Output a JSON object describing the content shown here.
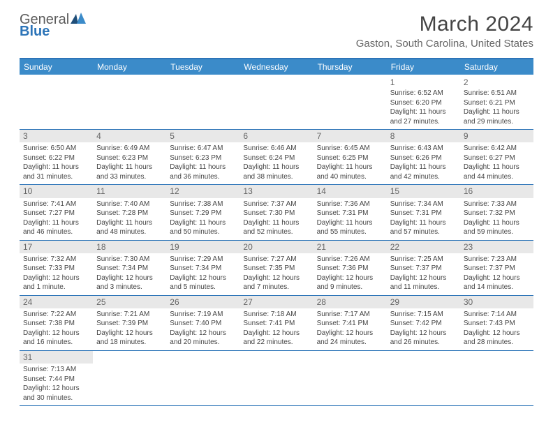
{
  "brand": {
    "part1": "General",
    "part2": "Blue"
  },
  "title": "March 2024",
  "location": "Gaston, South Carolina, United States",
  "weekdays": [
    "Sunday",
    "Monday",
    "Tuesday",
    "Wednesday",
    "Thursday",
    "Friday",
    "Saturday"
  ],
  "colors": {
    "header_bar": "#3b8bc9",
    "rule": "#2c74b8",
    "band": "#e8e8e8",
    "text": "#444444",
    "muted": "#666666"
  },
  "first_weekday_index": 5,
  "days": [
    {
      "n": 1,
      "sunrise": "6:52 AM",
      "sunset": "6:20 PM",
      "daylight": "11 hours and 27 minutes."
    },
    {
      "n": 2,
      "sunrise": "6:51 AM",
      "sunset": "6:21 PM",
      "daylight": "11 hours and 29 minutes."
    },
    {
      "n": 3,
      "sunrise": "6:50 AM",
      "sunset": "6:22 PM",
      "daylight": "11 hours and 31 minutes."
    },
    {
      "n": 4,
      "sunrise": "6:49 AM",
      "sunset": "6:23 PM",
      "daylight": "11 hours and 33 minutes."
    },
    {
      "n": 5,
      "sunrise": "6:47 AM",
      "sunset": "6:23 PM",
      "daylight": "11 hours and 36 minutes."
    },
    {
      "n": 6,
      "sunrise": "6:46 AM",
      "sunset": "6:24 PM",
      "daylight": "11 hours and 38 minutes."
    },
    {
      "n": 7,
      "sunrise": "6:45 AM",
      "sunset": "6:25 PM",
      "daylight": "11 hours and 40 minutes."
    },
    {
      "n": 8,
      "sunrise": "6:43 AM",
      "sunset": "6:26 PM",
      "daylight": "11 hours and 42 minutes."
    },
    {
      "n": 9,
      "sunrise": "6:42 AM",
      "sunset": "6:27 PM",
      "daylight": "11 hours and 44 minutes."
    },
    {
      "n": 10,
      "sunrise": "7:41 AM",
      "sunset": "7:27 PM",
      "daylight": "11 hours and 46 minutes."
    },
    {
      "n": 11,
      "sunrise": "7:40 AM",
      "sunset": "7:28 PM",
      "daylight": "11 hours and 48 minutes."
    },
    {
      "n": 12,
      "sunrise": "7:38 AM",
      "sunset": "7:29 PM",
      "daylight": "11 hours and 50 minutes."
    },
    {
      "n": 13,
      "sunrise": "7:37 AM",
      "sunset": "7:30 PM",
      "daylight": "11 hours and 52 minutes."
    },
    {
      "n": 14,
      "sunrise": "7:36 AM",
      "sunset": "7:31 PM",
      "daylight": "11 hours and 55 minutes."
    },
    {
      "n": 15,
      "sunrise": "7:34 AM",
      "sunset": "7:31 PM",
      "daylight": "11 hours and 57 minutes."
    },
    {
      "n": 16,
      "sunrise": "7:33 AM",
      "sunset": "7:32 PM",
      "daylight": "11 hours and 59 minutes."
    },
    {
      "n": 17,
      "sunrise": "7:32 AM",
      "sunset": "7:33 PM",
      "daylight": "12 hours and 1 minute."
    },
    {
      "n": 18,
      "sunrise": "7:30 AM",
      "sunset": "7:34 PM",
      "daylight": "12 hours and 3 minutes."
    },
    {
      "n": 19,
      "sunrise": "7:29 AM",
      "sunset": "7:34 PM",
      "daylight": "12 hours and 5 minutes."
    },
    {
      "n": 20,
      "sunrise": "7:27 AM",
      "sunset": "7:35 PM",
      "daylight": "12 hours and 7 minutes."
    },
    {
      "n": 21,
      "sunrise": "7:26 AM",
      "sunset": "7:36 PM",
      "daylight": "12 hours and 9 minutes."
    },
    {
      "n": 22,
      "sunrise": "7:25 AM",
      "sunset": "7:37 PM",
      "daylight": "12 hours and 11 minutes."
    },
    {
      "n": 23,
      "sunrise": "7:23 AM",
      "sunset": "7:37 PM",
      "daylight": "12 hours and 14 minutes."
    },
    {
      "n": 24,
      "sunrise": "7:22 AM",
      "sunset": "7:38 PM",
      "daylight": "12 hours and 16 minutes."
    },
    {
      "n": 25,
      "sunrise": "7:21 AM",
      "sunset": "7:39 PM",
      "daylight": "12 hours and 18 minutes."
    },
    {
      "n": 26,
      "sunrise": "7:19 AM",
      "sunset": "7:40 PM",
      "daylight": "12 hours and 20 minutes."
    },
    {
      "n": 27,
      "sunrise": "7:18 AM",
      "sunset": "7:41 PM",
      "daylight": "12 hours and 22 minutes."
    },
    {
      "n": 28,
      "sunrise": "7:17 AM",
      "sunset": "7:41 PM",
      "daylight": "12 hours and 24 minutes."
    },
    {
      "n": 29,
      "sunrise": "7:15 AM",
      "sunset": "7:42 PM",
      "daylight": "12 hours and 26 minutes."
    },
    {
      "n": 30,
      "sunrise": "7:14 AM",
      "sunset": "7:43 PM",
      "daylight": "12 hours and 28 minutes."
    },
    {
      "n": 31,
      "sunrise": "7:13 AM",
      "sunset": "7:44 PM",
      "daylight": "12 hours and 30 minutes."
    }
  ],
  "labels": {
    "sunrise": "Sunrise:",
    "sunset": "Sunset:",
    "daylight": "Daylight:"
  }
}
